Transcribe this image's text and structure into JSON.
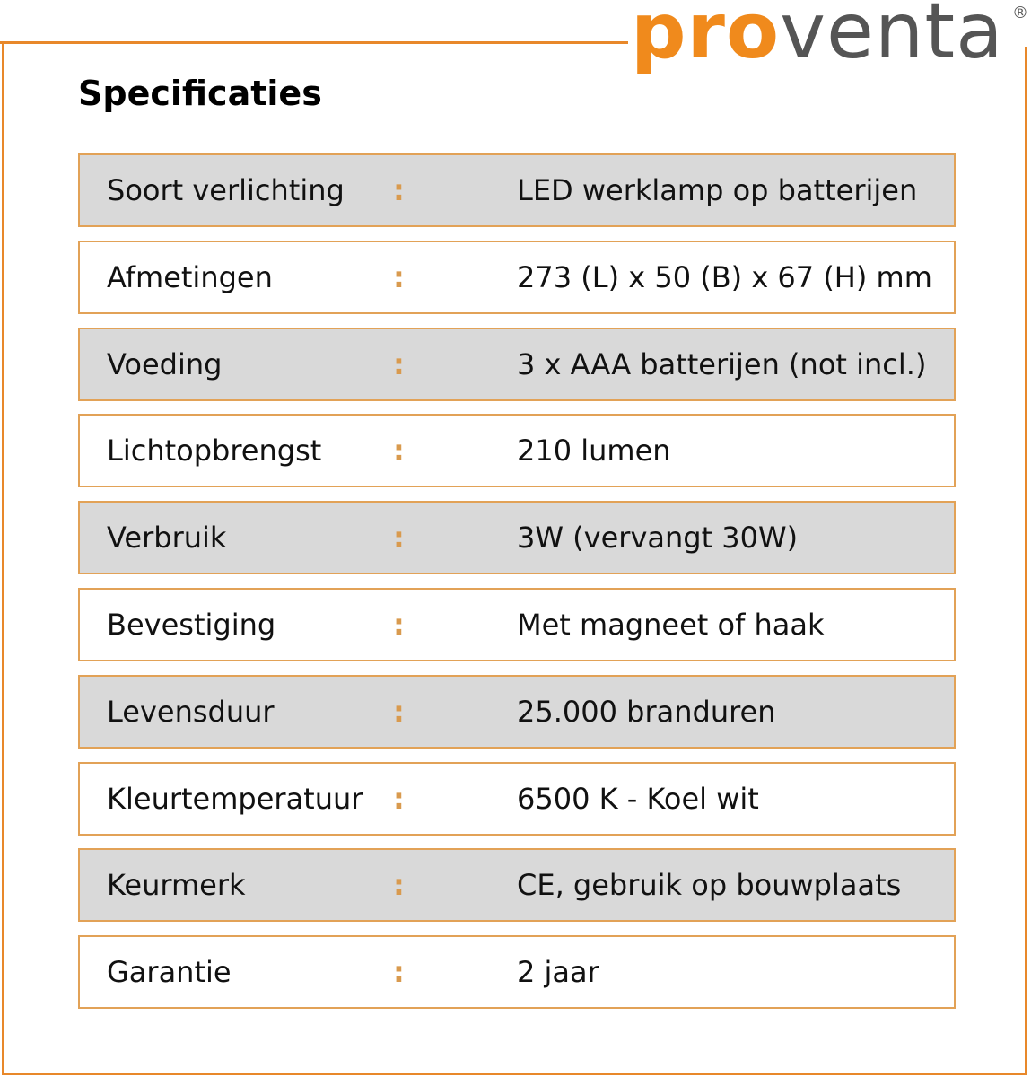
{
  "brand": {
    "logo_text_orange": "pro",
    "logo_text_gray": "venta",
    "registered_mark": "®",
    "accent_color": "#e8882a"
  },
  "title": "Specificaties",
  "separator": ":",
  "specs": [
    {
      "label": "Soort verlichting",
      "value": "LED werklamp op batterijen"
    },
    {
      "label": "Afmetingen",
      "value": "273 (L) x 50 (B) x 67 (H) mm"
    },
    {
      "label": "Voeding",
      "value": "3 x AAA batterijen (not incl.)"
    },
    {
      "label": "Lichtopbrengst",
      "value": "210 lumen"
    },
    {
      "label": "Verbruik",
      "value": "3W (vervangt 30W)"
    },
    {
      "label": "Bevestiging",
      "value": "Met magneet of haak"
    },
    {
      "label": "Levensduur",
      "value": "25.000 branduren"
    },
    {
      "label": "Kleurtemperatuur",
      "value": "6500 K - Koel wit"
    },
    {
      "label": "Keurmerk",
      "value": "CE, gebruik op bouwplaats"
    },
    {
      "label": "Garantie",
      "value": "2 jaar"
    }
  ]
}
